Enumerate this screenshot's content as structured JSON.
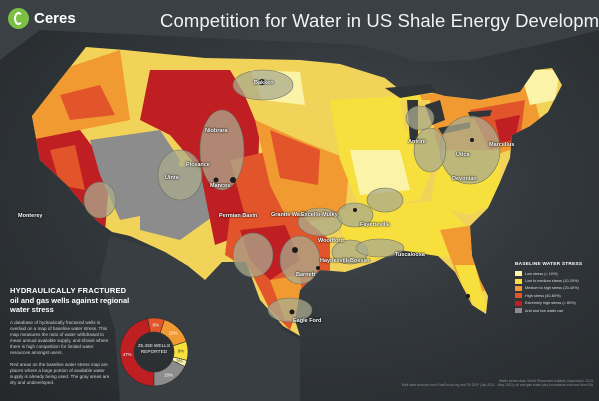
{
  "header": {
    "logo_text": "Ceres",
    "title": "Competition for Water in US Shale Energy Development"
  },
  "plays": [
    {
      "name": "Bakken"
    },
    {
      "name": "Niobrara"
    },
    {
      "name": "Marcellus"
    },
    {
      "name": "Utica"
    },
    {
      "name": "Mancos"
    },
    {
      "name": "Monterey"
    },
    {
      "name": "Devonian"
    },
    {
      "name": "Antrim"
    },
    {
      "name": "Piceance"
    },
    {
      "name": "Uinta"
    },
    {
      "name": "Granite Wash"
    },
    {
      "name": "Barnett"
    },
    {
      "name": "Permian Basin"
    },
    {
      "name": "Eagle Ford"
    },
    {
      "name": "Haynesville"
    },
    {
      "name": "Fayetteville"
    },
    {
      "name": "Woodford"
    },
    {
      "name": "Excello-Mulky"
    },
    {
      "name": "Bossier"
    },
    {
      "name": "Tuscaloosa"
    }
  ],
  "info_panel": {
    "heading_1": "HYDRAULICALLY FRACTURED",
    "heading_2": "oil and gas wells against regional water stress",
    "paragraph_1": "A database of hydraulically fractured wells is overlaid on a map of baseline water stress. This map measures the ratio of water withdrawal to mean annual available supply, and shows where there is high competition for limited water resources amongst users.",
    "paragraph_2": "Red areas on the baseline water stress map are places where a large portion of available water supply is already being used. The gray areas are dry and undeveloped."
  },
  "donut": {
    "center_count": "25,450 WELLS",
    "center_caption": "REPORTED",
    "segments": [
      {
        "label": "47%",
        "value": 47,
        "color": "#bf1e22"
      },
      {
        "label": "8%",
        "value": 8,
        "color": "#e2542a"
      },
      {
        "label": "15%",
        "value": 15,
        "color": "#f29a32"
      },
      {
        "label": "9%",
        "value": 9,
        "color": "#f7e03d"
      },
      {
        "label": "3%",
        "value": 3,
        "color": "#faf3a8"
      },
      {
        "label": "18%",
        "value": 18,
        "color": "#8c8c8c"
      }
    ]
  },
  "legend": {
    "title": "BASELINE WATER STRESS",
    "items": [
      {
        "label": "Low stress (< 10%)",
        "color": "#faf3a8"
      },
      {
        "label": "Low to medium stress (10-20%)",
        "color": "#f7e03d"
      },
      {
        "label": "Medium to high stress (20-40%)",
        "color": "#f29a32"
      },
      {
        "label": "High stress (40-80%)",
        "color": "#e2542a"
      },
      {
        "label": "Extremely high stress (> 80%)",
        "color": "#bf1e22"
      },
      {
        "label": "Arid and low water use",
        "color": "#8c8c8c"
      }
    ]
  },
  "footer": {
    "line_1": "Water stress data: World Resources Institute (Aqueduct), 2013",
    "line_2": "Well data sourced from FracFocus.org and PA DEP (Jan 2011 - May 2013); oil and gas shale play boundaries sourced from EIA"
  }
}
